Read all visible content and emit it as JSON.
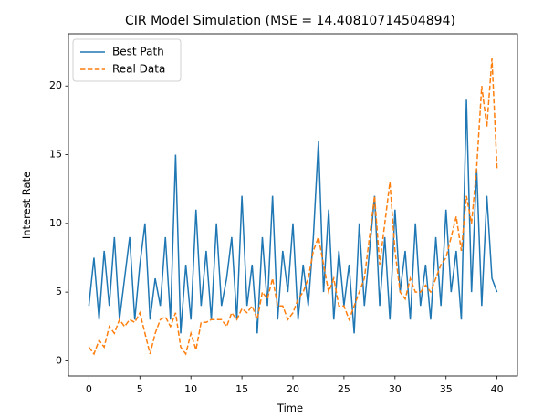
{
  "chart_data": {
    "type": "line",
    "title": "CIR Model Simulation (MSE = 14.40810714504894)",
    "xlabel": "Time",
    "ylabel": "Interest Rate",
    "x": [
      0,
      0.5,
      1,
      1.5,
      2,
      2.5,
      3,
      3.5,
      4,
      4.5,
      5,
      5.5,
      6,
      6.5,
      7,
      7.5,
      8,
      8.5,
      9,
      9.5,
      10,
      10.5,
      11,
      11.5,
      12,
      12.5,
      13,
      13.5,
      14,
      14.5,
      15,
      15.5,
      16,
      16.5,
      17,
      17.5,
      18,
      18.5,
      19,
      19.5,
      20,
      20.5,
      21,
      21.5,
      22,
      22.5,
      23,
      23.5,
      24,
      24.5,
      25,
      25.5,
      26,
      26.5,
      27,
      27.5,
      28,
      28.5,
      29,
      29.5,
      30,
      30.5,
      31,
      31.5,
      32,
      32.5,
      33,
      33.5,
      34,
      34.5,
      35,
      35.5,
      36,
      36.5,
      37,
      37.5,
      38,
      38.5,
      39,
      39.5,
      40
    ],
    "series": [
      {
        "name": "Best Path",
        "color": "#1f77b4",
        "dashed": false,
        "values": [
          4,
          7.5,
          3,
          8,
          4,
          9,
          3,
          6,
          9,
          3,
          7,
          10,
          3,
          6,
          4,
          9,
          3,
          15,
          2,
          7,
          3,
          11,
          4,
          8,
          3,
          10,
          4,
          6,
          9,
          3,
          12,
          4,
          7,
          2,
          9,
          4,
          12,
          3,
          8,
          5,
          10,
          3,
          7,
          4,
          9,
          16,
          5,
          11,
          3,
          8,
          4,
          7,
          2,
          10,
          4,
          8,
          12,
          4,
          9,
          3,
          11,
          5,
          8,
          3,
          10,
          4,
          7,
          3,
          9,
          4,
          11,
          5,
          8,
          3,
          19,
          5,
          14,
          4,
          12,
          6,
          5
        ]
      },
      {
        "name": "Real Data",
        "color": "#ff7f0e",
        "dashed": true,
        "values": [
          1,
          0.5,
          1.5,
          1,
          2.5,
          2,
          3,
          2.5,
          3,
          2.8,
          3.5,
          2,
          0.5,
          2,
          3,
          3.2,
          2.5,
          3.5,
          1,
          0.5,
          2,
          0.8,
          2.8,
          2.8,
          3,
          3,
          3,
          2.5,
          3.5,
          3,
          3.8,
          3.5,
          4,
          3,
          5,
          4.5,
          6,
          4,
          4,
          3,
          3.5,
          4.5,
          5,
          6,
          8,
          9,
          7,
          5,
          6,
          4,
          4,
          3,
          4,
          5,
          6,
          9,
          12,
          7,
          10,
          13,
          8,
          5,
          4.5,
          6,
          5,
          5,
          5.5,
          5,
          6,
          7,
          7.5,
          9,
          10.5,
          8,
          12,
          10,
          14,
          20,
          17,
          22,
          14
        ]
      }
    ],
    "xlim": [
      -2,
      42
    ],
    "ylim": [
      -1.1,
      23.8
    ],
    "xticks": [
      0,
      5,
      10,
      15,
      20,
      25,
      30,
      35,
      40
    ],
    "yticks": [
      0,
      5,
      10,
      15,
      20
    ],
    "legend": "upper left"
  }
}
